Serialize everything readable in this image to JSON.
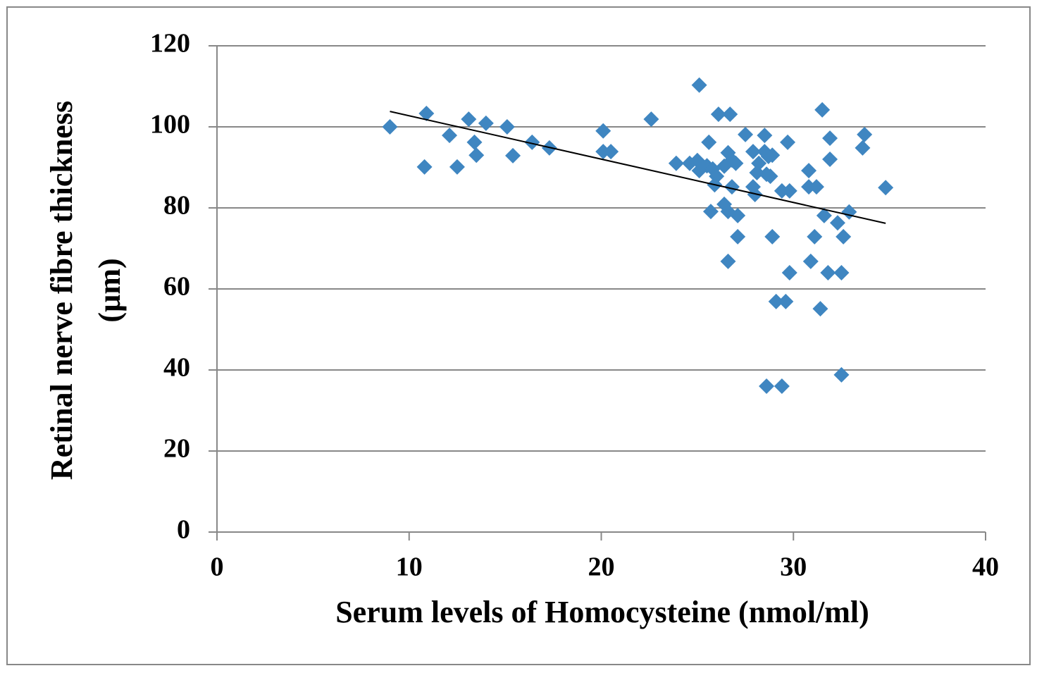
{
  "chart_data": {
    "type": "scatter",
    "x_label": "Serum levels of Homocysteine (nmol/ml)",
    "y_label": [
      "Retinal nerve fibre  thickness",
      "(µm)"
    ],
    "x": [
      9.0,
      10.9,
      10.8,
      12.1,
      12.5,
      13.1,
      13.4,
      13.5,
      14.0,
      15.1,
      15.4,
      16.4,
      17.3,
      20.1,
      20.1,
      20.5,
      22.6,
      25.1,
      23.9,
      24.6,
      25.0,
      25.1,
      25.6,
      25.5,
      25.8,
      26.1,
      26.7,
      26.0,
      25.9,
      26.4,
      26.6,
      26.8,
      27.0,
      26.8,
      25.7,
      26.4,
      26.6,
      27.1,
      27.1,
      26.6,
      27.5,
      27.9,
      28.2,
      28.1,
      27.9,
      28.0,
      28.5,
      28.5,
      28.7,
      28.9,
      28.6,
      28.8,
      28.9,
      28.6,
      29.4,
      29.1,
      29.6,
      29.4,
      29.8,
      29.7,
      29.8,
      30.8,
      30.8,
      31.2,
      31.1,
      30.9,
      31.4,
      31.5,
      31.9,
      31.9,
      31.6,
      31.8,
      32.5,
      32.6,
      32.3,
      32.9,
      32.5,
      33.7,
      33.6,
      34.8
    ],
    "values": [
      100,
      103.3,
      90.1,
      97.9,
      90.1,
      101.9,
      96.2,
      93.0,
      100.9,
      100,
      92.9,
      96.2,
      94.8,
      99,
      93.9,
      93.9,
      101.9,
      110.3,
      91,
      91,
      91.7,
      89.2,
      96.2,
      90.4,
      89.6,
      103.1,
      103.1,
      87.8,
      85.7,
      90.3,
      93.6,
      91.8,
      91,
      85.2,
      79.1,
      80.9,
      79.1,
      78.1,
      72.9,
      66.8,
      98.1,
      93.9,
      91,
      88.7,
      85.2,
      83.3,
      97.9,
      93.9,
      92.7,
      93,
      88.3,
      87.8,
      72.9,
      36,
      36,
      56.9,
      56.9,
      84.2,
      84.2,
      96.2,
      64,
      89.2,
      85.2,
      85.2,
      72.9,
      66.8,
      55.1,
      104.2,
      97.2,
      92,
      78.1,
      64,
      64,
      72.9,
      76.3,
      79,
      38.8,
      98.1,
      94.8,
      85
    ],
    "color": "#3f86c1",
    "trendline": {
      "x": [
        9.0,
        34.8
      ],
      "y": [
        103.8,
        76.2
      ],
      "color": "#000000"
    },
    "xlim": [
      0,
      40
    ],
    "xticks": [
      0,
      10,
      20,
      30,
      40
    ],
    "ylim": [
      0,
      120
    ],
    "yticks": [
      0,
      20,
      40,
      60,
      80,
      100,
      120
    ],
    "grid": true
  }
}
